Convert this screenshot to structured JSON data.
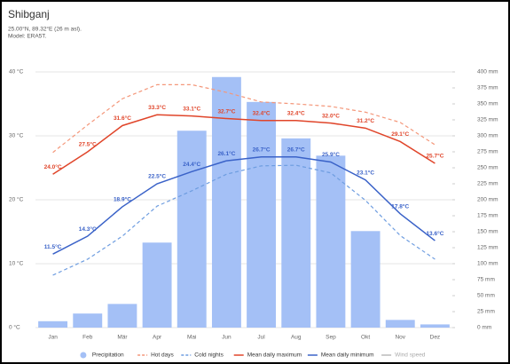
{
  "chart_data": {
    "type": "combo",
    "title": "Shibganj",
    "subtitle": "25.00°N, 89.32°E (26 m asl).",
    "model": "Model: ERA5T.",
    "categories": [
      "Jan",
      "Feb",
      "Mär",
      "Apr",
      "Mai",
      "Jun",
      "Jul",
      "Aug",
      "Sep",
      "Okt",
      "Nov",
      "Dez"
    ],
    "ylim": [
      0,
      40
    ],
    "yticks": [
      {
        "value": 0,
        "label": "0 °C"
      },
      {
        "value": 10,
        "label": "10 °C"
      },
      {
        "value": 20,
        "label": "20 °C"
      },
      {
        "value": 30,
        "label": "30 °C"
      },
      {
        "value": 40,
        "label": "40 °C"
      }
    ],
    "y2lim": [
      0,
      400
    ],
    "y2ticks": [
      {
        "value": 0,
        "label": "0 mm"
      },
      {
        "value": 25,
        "label": "25 mm"
      },
      {
        "value": 50,
        "label": "50 mm"
      },
      {
        "value": 75,
        "label": "75 mm"
      },
      {
        "value": 100,
        "label": "100 mm"
      },
      {
        "value": 125,
        "label": "125 mm"
      },
      {
        "value": 150,
        "label": "150 mm"
      },
      {
        "value": 175,
        "label": "175 mm"
      },
      {
        "value": 200,
        "label": "200 mm"
      },
      {
        "value": 225,
        "label": "225 mm"
      },
      {
        "value": 250,
        "label": "250 mm"
      },
      {
        "value": 275,
        "label": "275 mm"
      },
      {
        "value": 300,
        "label": "300 mm"
      },
      {
        "value": 325,
        "label": "325 mm"
      },
      {
        "value": 350,
        "label": "350 mm"
      },
      {
        "value": 375,
        "label": "375 mm"
      },
      {
        "value": 400,
        "label": "400 mm"
      }
    ],
    "grid": true,
    "series": [
      {
        "name": "Precipitation",
        "type": "bar",
        "axis": "y2",
        "color": "#a4c0f6",
        "values": [
          10,
          22,
          37,
          133,
          308,
          392,
          353,
          296,
          269,
          151,
          12,
          5
        ]
      },
      {
        "name": "Hot days",
        "type": "line",
        "dash": true,
        "color": "#f4977a",
        "values": [
          27.4,
          31.7,
          35.8,
          38,
          38,
          36.8,
          35.3,
          35,
          34.6,
          33.7,
          32.1,
          28.6
        ]
      },
      {
        "name": "Cold nights",
        "type": "line",
        "dash": true,
        "color": "#6e9de0",
        "values": [
          8.2,
          10.7,
          14.3,
          19,
          21.4,
          24,
          25.3,
          25.4,
          24.2,
          19.9,
          14.4,
          10.7
        ]
      },
      {
        "name": "Mean daily maximum",
        "type": "line",
        "dash": false,
        "color": "#e0452a",
        "values": [
          24.0,
          27.5,
          31.6,
          33.3,
          33.1,
          32.7,
          32.4,
          32.4,
          32.0,
          31.2,
          29.1,
          25.7
        ],
        "value_labels": [
          "24.0°C",
          "27.5°C",
          "31.6°C",
          "33.3°C",
          "33.1°C",
          "32.7°C",
          "32.4°C",
          "32.4°C",
          "32.0°C",
          "31.2°C",
          "29.1°C",
          "25.7°C"
        ]
      },
      {
        "name": "Mean daily minimum",
        "type": "line",
        "dash": false,
        "color": "#3a62c8",
        "values": [
          11.5,
          14.3,
          18.9,
          22.5,
          24.4,
          26.1,
          26.7,
          26.7,
          25.9,
          23.1,
          17.8,
          13.6
        ],
        "value_labels": [
          "11.5°C",
          "14.3°C",
          "18.9°C",
          "22.5°C",
          "24.4°C",
          "26.1°C",
          "26.7°C",
          "26.7°C",
          "25.9°C",
          "23.1°C",
          "17.8°C",
          "13.6°C"
        ]
      },
      {
        "name": "Wind speed",
        "type": "line",
        "dash": false,
        "color": "#bbbbbb"
      }
    ]
  }
}
